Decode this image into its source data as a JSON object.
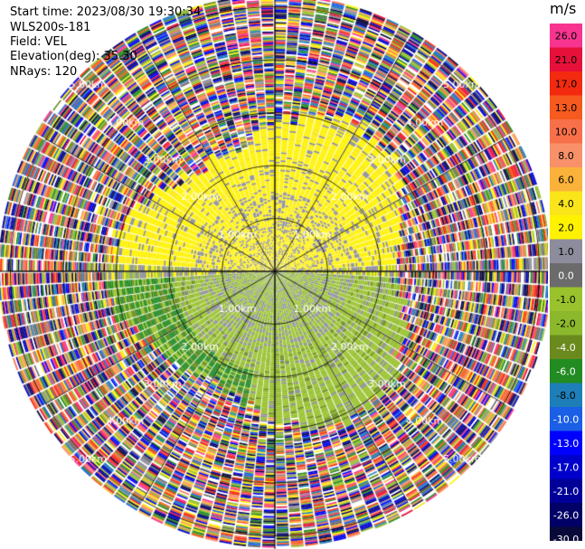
{
  "info": {
    "start_time": "Start time: 2023/08/30 19:30:34",
    "instrument": "WLS200s-181",
    "field": "Field: VEL",
    "elevation": "Elevation(deg): 35.30",
    "nrays": "NRays: 120"
  },
  "colorbar": {
    "unit": "m/s",
    "bins": [
      {
        "label": "26.0",
        "color": "#f7348f"
      },
      {
        "label": "21.0",
        "color": "#e6103a"
      },
      {
        "label": "17.0",
        "color": "#f42a10"
      },
      {
        "label": "13.0",
        "color": "#f75a1e"
      },
      {
        "label": "10.0",
        "color": "#f7704a"
      },
      {
        "label": "8.0",
        "color": "#f8916a"
      },
      {
        "label": "6.0",
        "color": "#fbb23a"
      },
      {
        "label": "4.0",
        "color": "#f9e51a"
      },
      {
        "label": "2.0",
        "color": "#fff200"
      },
      {
        "label": "1.0",
        "color": "#8d8c9c"
      },
      {
        "label": "0.0",
        "color": "#6b6b6b"
      },
      {
        "label": "-1.0",
        "color": "#99c22c"
      },
      {
        "label": "-2.0",
        "color": "#8cb82c"
      },
      {
        "label": "-4.0",
        "color": "#6b8a1e"
      },
      {
        "label": "-6.0",
        "color": "#228b22"
      },
      {
        "label": "-8.0",
        "color": "#1e7fb8"
      },
      {
        "label": "-10.0",
        "color": "#1a5fe6"
      },
      {
        "label": "-13.0",
        "color": "#0000ff"
      },
      {
        "label": "-17.0",
        "color": "#0000cc"
      },
      {
        "label": "-21.0",
        "color": "#000099"
      },
      {
        "label": "-26.0",
        "color": "#000066"
      },
      {
        "label": "-30.0",
        "color": "#0a0a3a"
      }
    ]
  },
  "chart_data": {
    "type": "heatmap",
    "projection": "polar",
    "field": "VEL",
    "unit": "m/s",
    "nrays": 120,
    "elevation_deg": 35.3,
    "range_ring_labels_km": [
      "1.00km",
      "2.00km",
      "3.00km",
      "4.00km",
      "5.00km"
    ],
    "range_max_km": 5.2,
    "gate_spacing_km": 0.03,
    "description_sectors": [
      {
        "range_km": [
          0,
          1.5
        ],
        "north_half": "yellow (positive, ~2 m/s) with grey patches",
        "south_half": "green (negative, ~-2 m/s) with grey"
      },
      {
        "range_km": [
          1.5,
          2.8
        ],
        "north_half": "yellow",
        "south_half": "green / dark green"
      },
      {
        "range_km": [
          2.8,
          5.2
        ],
        "all": "noisy multicolour (all velocity bins)"
      }
    ]
  }
}
